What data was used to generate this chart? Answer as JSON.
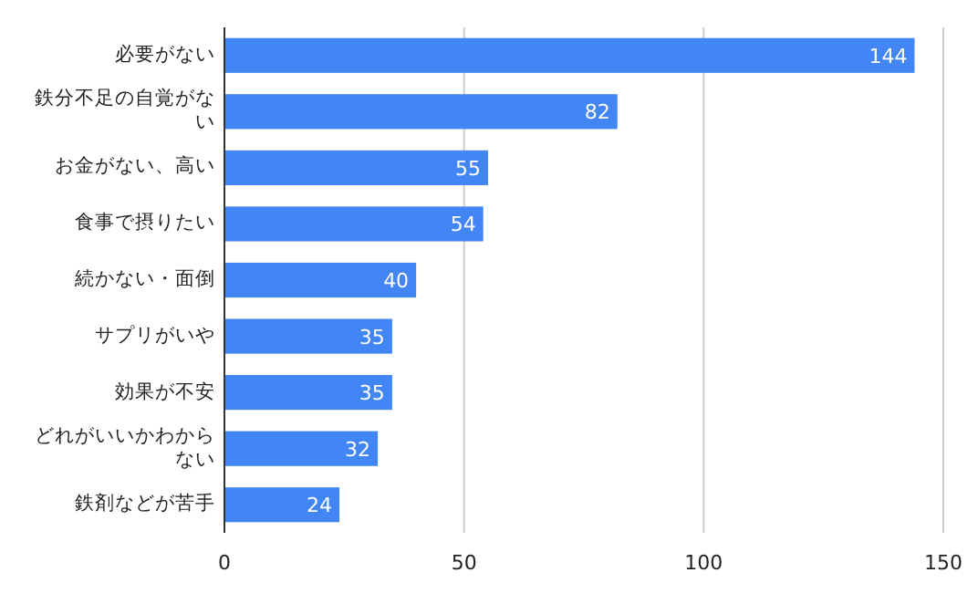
{
  "chart_data": {
    "type": "bar",
    "orientation": "horizontal",
    "categories": [
      "必要がない",
      "鉄分不足の自覚がない",
      "お金がない、高い",
      "食事で摂りたい",
      "続かない・面倒",
      "サプリがいや",
      "効果が不安",
      "どれがいいかわからない",
      "鉄剤などが苦手"
    ],
    "values": [
      144,
      82,
      55,
      54,
      40,
      35,
      35,
      32,
      24
    ],
    "color": "#4285f4",
    "xlim": [
      0,
      150
    ],
    "xticks": [
      0,
      50,
      100,
      150
    ],
    "grid": "x",
    "data_labels": true
  }
}
